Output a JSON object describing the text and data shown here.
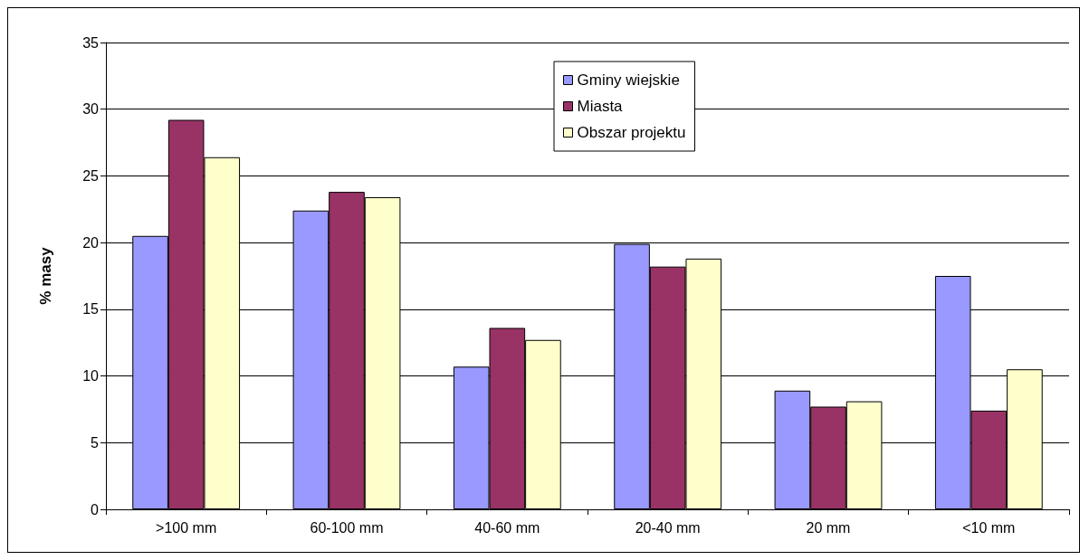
{
  "chart_data": {
    "type": "bar",
    "ylabel": "% masy",
    "categories": [
      ">100 mm",
      "60-100 mm",
      "40-60 mm",
      "20-40 mm",
      "20 mm",
      "<10 mm"
    ],
    "series": [
      {
        "name": "Gminy wiejskie",
        "color": "#9999ff",
        "values": [
          20.5,
          22.4,
          10.7,
          19.9,
          8.9,
          17.5
        ]
      },
      {
        "name": "Miasta",
        "color": "#993366",
        "values": [
          29.2,
          23.8,
          13.6,
          18.2,
          7.7,
          7.4
        ]
      },
      {
        "name": "Obszar projektu",
        "color": "#ffffcc",
        "values": [
          26.4,
          23.4,
          12.7,
          18.8,
          8.1,
          10.5
        ]
      }
    ],
    "ylim": [
      0,
      35
    ],
    "yticks": [
      0,
      5,
      10,
      15,
      20,
      25,
      30,
      35
    ],
    "grid": "y",
    "legend": "top"
  }
}
